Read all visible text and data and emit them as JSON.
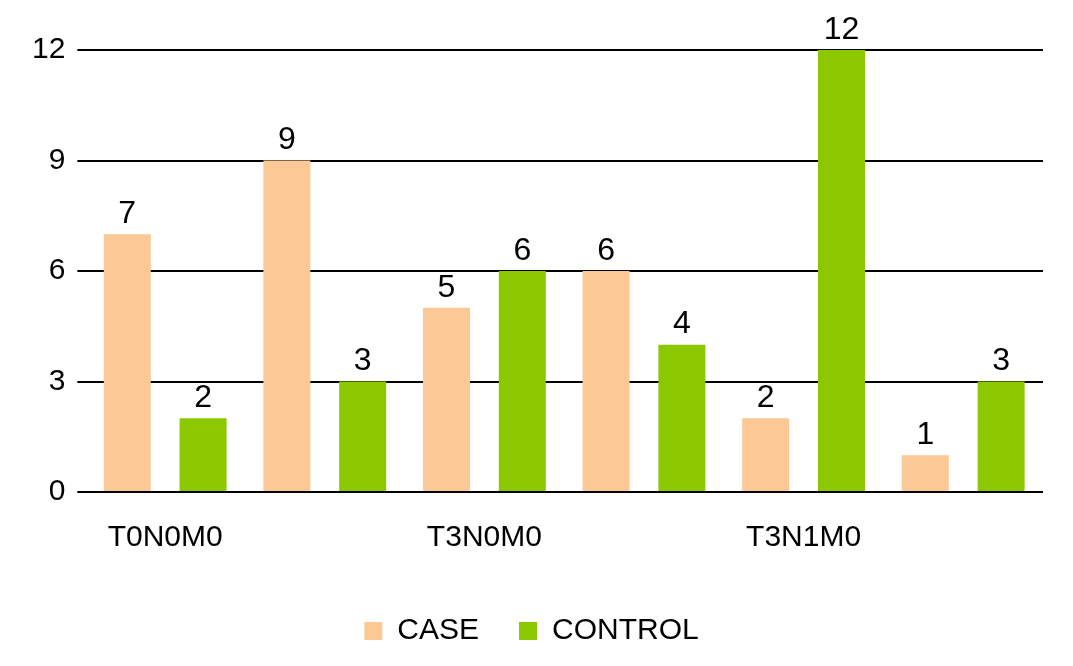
{
  "chart_data": {
    "type": "bar",
    "categories": [
      "T0N0M0",
      null,
      "T3N0M0",
      null,
      "T3N1M0",
      null
    ],
    "series": [
      {
        "name": "CASE",
        "color": "#fbc896",
        "values": [
          7,
          9,
          5,
          6,
          2,
          1
        ]
      },
      {
        "name": "CONTROL",
        "color": "#8cc800",
        "values": [
          2,
          3,
          6,
          4,
          12,
          3
        ]
      }
    ],
    "ylim": [
      0,
      12
    ],
    "yticks": [
      0,
      3,
      6,
      9,
      12
    ],
    "grid": "y",
    "legend": "bottom",
    "data_labels": true
  }
}
